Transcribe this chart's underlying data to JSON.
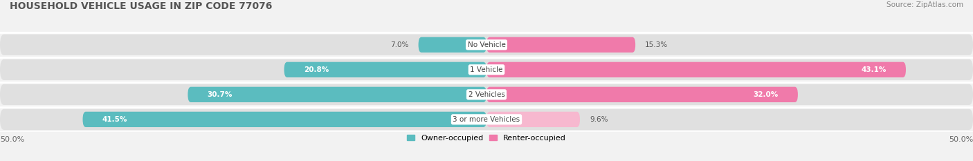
{
  "title": "HOUSEHOLD VEHICLE USAGE IN ZIP CODE 77076",
  "source": "Source: ZipAtlas.com",
  "categories": [
    "No Vehicle",
    "1 Vehicle",
    "2 Vehicles",
    "3 or more Vehicles"
  ],
  "owner_values": [
    7.0,
    20.8,
    30.7,
    41.5
  ],
  "renter_values": [
    15.3,
    43.1,
    32.0,
    9.6
  ],
  "owner_color": "#5bbcbf",
  "renter_color": "#f07aaa",
  "renter_color_light": "#f7b8cf",
  "owner_label": "Owner-occupied",
  "renter_label": "Renter-occupied",
  "xlim": [
    -50,
    50
  ],
  "xticklabels": [
    "50.0%",
    "50.0%"
  ],
  "background_color": "#f2f2f2",
  "bar_background_color": "#e0e0e0",
  "title_fontsize": 10,
  "source_fontsize": 7.5,
  "bar_height": 0.62,
  "label_fontsize": 7.5
}
